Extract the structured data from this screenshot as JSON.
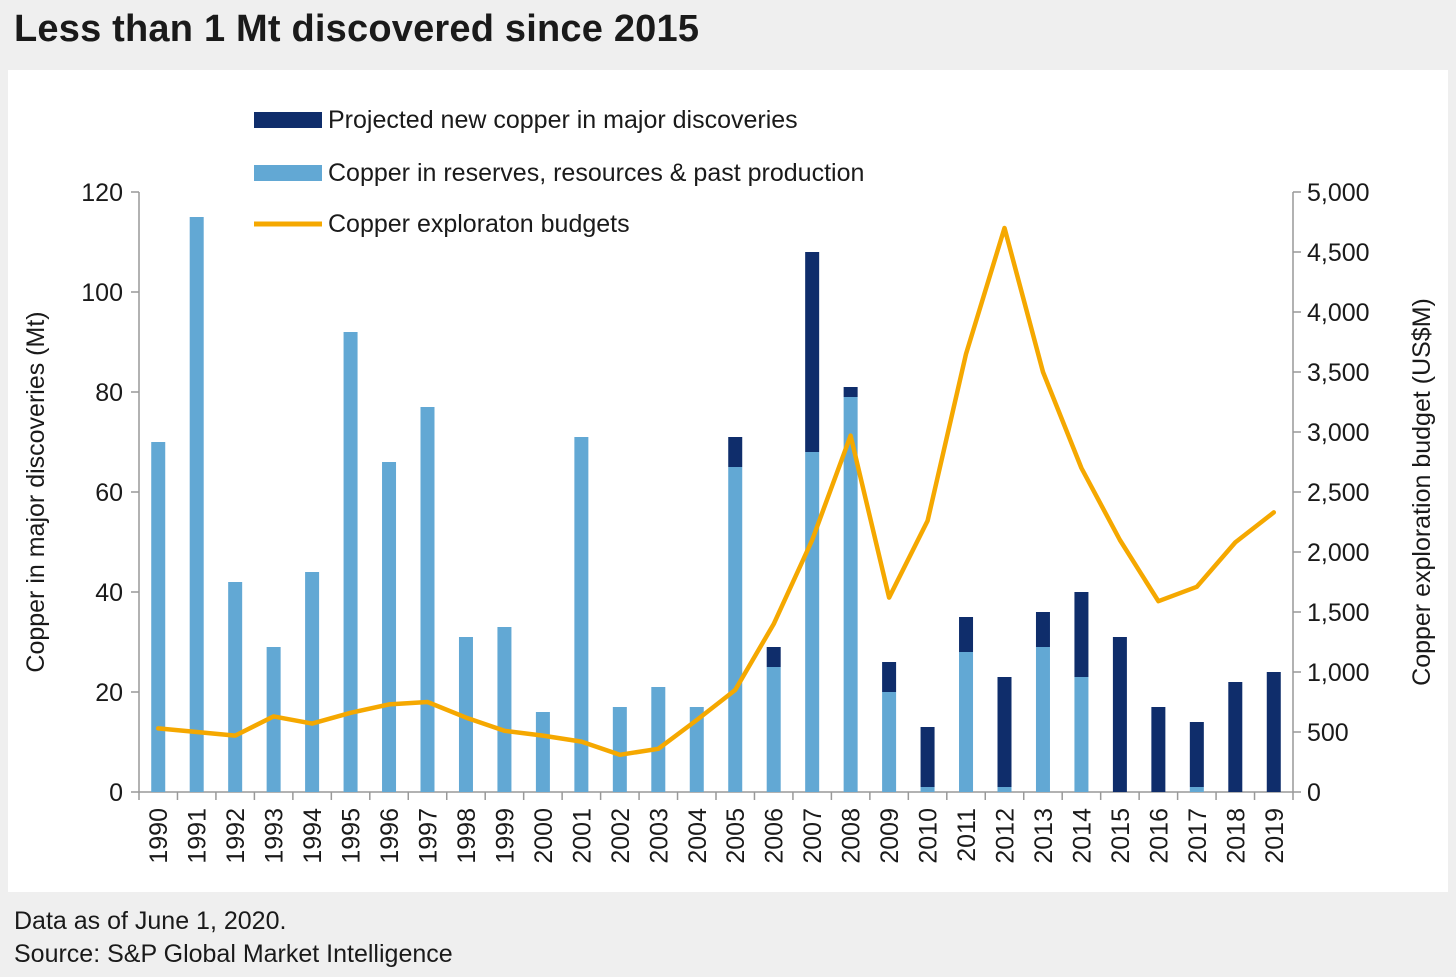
{
  "title": "Less than 1 Mt discovered since 2015",
  "footer": {
    "note": "Data as of June 1, 2020.",
    "source": "Source: S&P Global Market Intelligence"
  },
  "colors": {
    "projected": "#0f2d6b",
    "reserves": "#62a8d4",
    "budgets": "#f5a800",
    "axis": "#999999",
    "text": "#1a1a1a"
  },
  "chart_data": {
    "type": "bar",
    "stacked": true,
    "categories": [
      "1990",
      "1991",
      "1992",
      "1993",
      "1994",
      "1995",
      "1996",
      "1997",
      "1998",
      "1999",
      "2000",
      "2001",
      "2002",
      "2003",
      "2004",
      "2005",
      "2006",
      "2007",
      "2008",
      "2009",
      "2010",
      "2011",
      "2012",
      "2013",
      "2014",
      "2015",
      "2016",
      "2017",
      "2018",
      "2019"
    ],
    "series": [
      {
        "name": "Copper in reserves, resources & past production",
        "type": "bar",
        "axis": "left",
        "values": [
          70,
          115,
          42,
          29,
          44,
          92,
          66,
          77,
          31,
          33,
          16,
          71,
          17,
          21,
          17,
          65,
          25,
          68,
          79,
          20,
          1,
          28,
          1,
          29,
          23,
          0,
          0,
          1,
          0,
          0
        ]
      },
      {
        "name": "Projected new copper in major discoveries",
        "type": "bar",
        "axis": "left",
        "values": [
          0,
          0,
          0,
          0,
          0,
          0,
          0,
          0,
          0,
          0,
          0,
          0,
          0,
          0,
          0,
          6,
          4,
          40,
          2,
          6,
          12,
          7,
          22,
          7,
          17,
          31,
          17,
          13,
          22,
          24
        ]
      },
      {
        "name": "Copper exploraton budgets",
        "type": "line",
        "axis": "right",
        "values": [
          530,
          500,
          470,
          630,
          570,
          660,
          730,
          750,
          620,
          510,
          470,
          420,
          310,
          360,
          600,
          850,
          1400,
          2100,
          2970,
          1620,
          2260,
          3650,
          4700,
          3500,
          2700,
          2100,
          1590,
          1710,
          2080,
          2330
        ]
      }
    ],
    "yaxis_left": {
      "label": "Copper in major discoveries (Mt)",
      "range": [
        0,
        120
      ],
      "ticks": [
        "0",
        "20",
        "40",
        "60",
        "80",
        "100",
        "120"
      ]
    },
    "yaxis_right": {
      "label": "Copper exploration budget (US$M)",
      "range": [
        0,
        5000
      ],
      "ticks": [
        "0",
        "500",
        "1,000",
        "1,500",
        "2,000",
        "2,500",
        "3,000",
        "3,500",
        "4,000",
        "4,500",
        "5,000"
      ]
    },
    "legend_position": "top-left",
    "grid": false
  }
}
